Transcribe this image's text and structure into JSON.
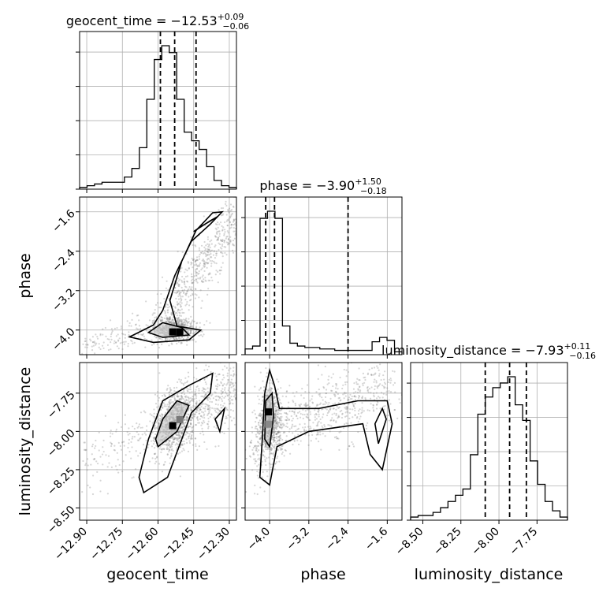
{
  "chart_data": {
    "type": "corner",
    "parameters": [
      "geocent_time",
      "phase",
      "luminosity_distance"
    ],
    "titles": [
      {
        "param": "geocent_time",
        "median": "−12.53",
        "plus": "+0.09",
        "minus": "−0.06"
      },
      {
        "param": "phase",
        "median": "−3.90",
        "plus": "+1.50",
        "minus": "−0.18"
      },
      {
        "param": "luminosity_distance",
        "median": "−7.93",
        "plus": "+0.11",
        "minus": "−0.16"
      }
    ],
    "axes": {
      "geocent_time": {
        "range": [
          -12.93,
          -12.27
        ],
        "ticks": [
          -12.9,
          -12.75,
          -12.6,
          -12.45,
          -12.3
        ],
        "tick_labels": [
          "−12.90",
          "−12.75",
          "−12.60",
          "−12.45",
          "−12.30"
        ]
      },
      "phase": {
        "range": [
          -4.5,
          -1.3
        ],
        "ticks": [
          -4.0,
          -3.2,
          -2.4,
          -1.6
        ],
        "tick_labels": [
          "−4.0",
          "−3.2",
          "−2.4",
          "−1.6"
        ]
      },
      "luminosity_distance": {
        "range": [
          -8.58,
          -7.55
        ],
        "ticks": [
          -8.5,
          -8.25,
          -8.0,
          -7.75
        ],
        "tick_labels": [
          "−8.50",
          "−8.25",
          "−8.00",
          "−7.75"
        ]
      }
    },
    "quantiles": {
      "geocent_time": [
        -12.59,
        -12.53,
        -12.44
      ],
      "phase": [
        -4.08,
        -3.9,
        -2.4
      ],
      "luminosity_distance": [
        -8.09,
        -7.93,
        -7.82
      ]
    },
    "histograms": {
      "geocent_time": {
        "counts": [
          1,
          2,
          3,
          4,
          4,
          4,
          7,
          12,
          24,
          52,
          75,
          83,
          79,
          52,
          33,
          28,
          23,
          13,
          5,
          2,
          1
        ]
      },
      "phase": {
        "counts": [
          4,
          6,
          95,
          100,
          95,
          20,
          8,
          6,
          5,
          5,
          4,
          4,
          3,
          3,
          3,
          3,
          3,
          9,
          12,
          10,
          2
        ]
      },
      "luminosity_distance": {
        "counts": [
          2,
          3,
          3,
          5,
          8,
          12,
          16,
          20,
          42,
          68,
          79,
          85,
          88,
          92,
          74,
          64,
          38,
          23,
          12,
          6,
          2
        ]
      }
    },
    "scatter_samples": 1400,
    "grid": true,
    "colors": {
      "line": "#000000",
      "points": "#8a8a8a",
      "grid": "#b0b0b0"
    }
  }
}
